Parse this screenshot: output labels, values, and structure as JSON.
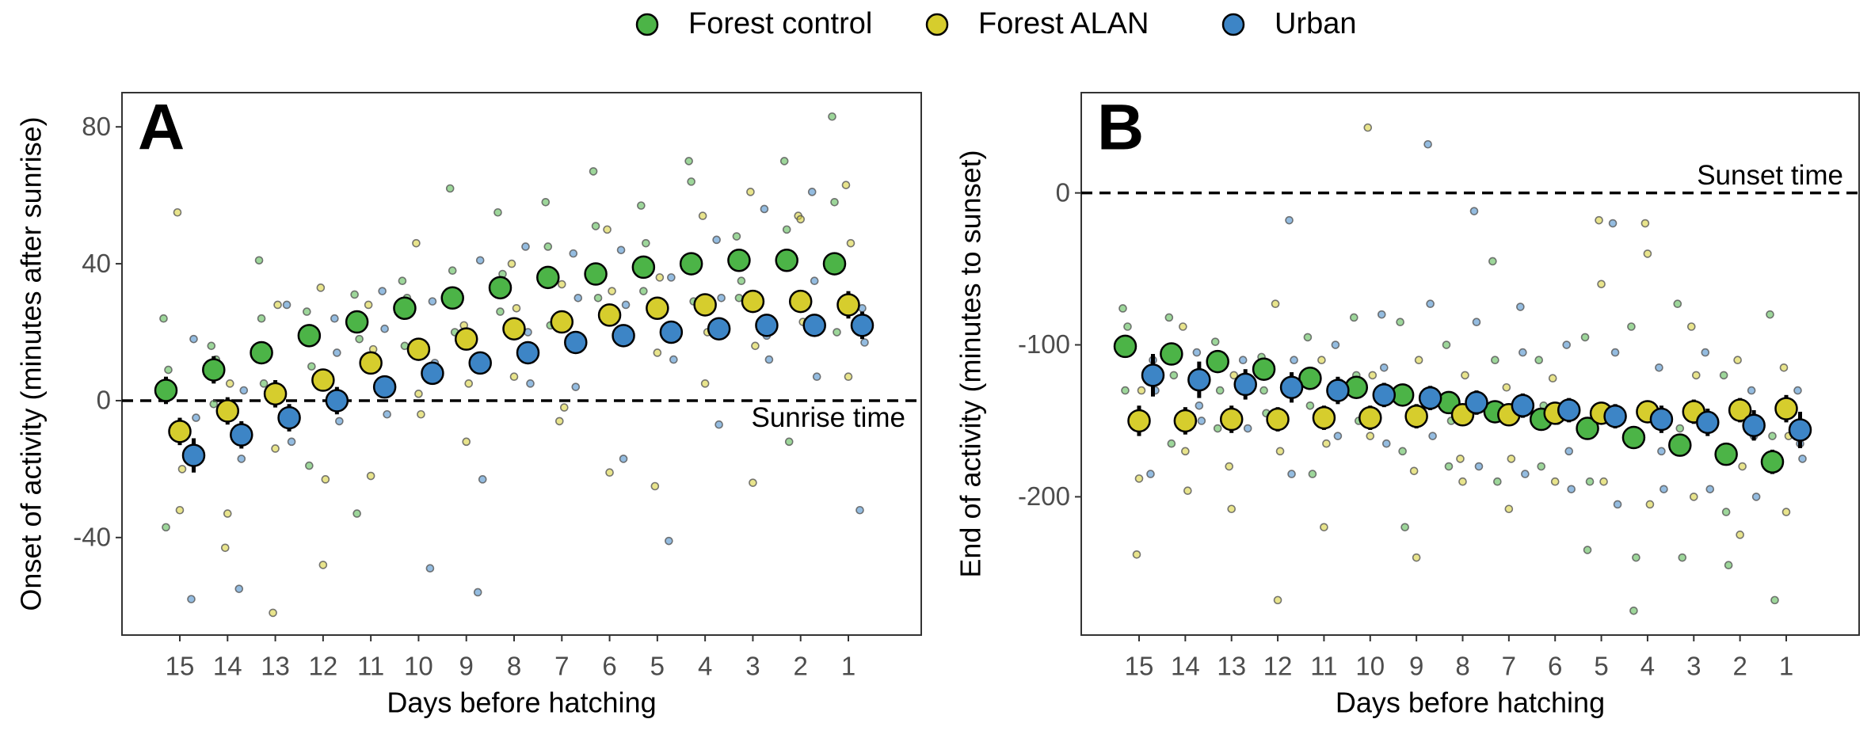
{
  "chart_data": [
    {
      "type": "dotplot",
      "panel_label": "A",
      "x_label": "Days before hatching",
      "y_label": "Onset of activity (minutes after sunrise)",
      "categories": [
        "15",
        "14",
        "13",
        "12",
        "11",
        "10",
        "9",
        "8",
        "7",
        "6",
        "5",
        "4",
        "3",
        "2",
        "1"
      ],
      "ylim": [
        -68.5,
        90
      ],
      "yticks": [
        -40,
        0,
        40,
        80
      ],
      "hline": 0,
      "hline_label": "Sunrise time",
      "series": [
        {
          "name": "Forest control",
          "color": "#4cb447",
          "values": [
            3,
            9,
            14,
            19,
            23,
            27,
            30,
            33,
            36,
            37,
            39,
            40,
            41,
            41,
            40
          ],
          "errors": [
            4,
            4,
            3,
            3,
            3,
            3,
            3,
            3,
            3,
            3,
            3,
            3,
            3,
            3,
            3
          ],
          "points": [
            [
              24,
              -37,
              9
            ],
            [
              16,
              -1,
              12
            ],
            [
              41,
              24,
              5
            ],
            [
              26,
              -19,
              10
            ],
            [
              31,
              -33,
              18
            ],
            [
              35,
              16,
              30
            ],
            [
              62,
              38,
              20
            ],
            [
              55,
              26,
              37
            ],
            [
              58,
              45,
              22
            ],
            [
              67,
              51,
              30
            ],
            [
              57,
              32,
              46
            ],
            [
              70,
              64,
              29
            ],
            [
              48,
              30,
              35
            ],
            [
              70,
              50,
              -12
            ],
            [
              83,
              58,
              20
            ]
          ]
        },
        {
          "name": "Forest ALAN",
          "color": "#d6cd2d",
          "values": [
            -9,
            -3,
            2,
            6,
            11,
            15,
            18,
            21,
            23,
            25,
            27,
            28,
            29,
            29,
            28
          ],
          "errors": [
            4,
            4,
            4,
            3,
            3,
            3,
            3,
            3,
            3,
            3,
            3,
            3,
            3,
            3,
            4
          ],
          "points": [
            [
              55,
              -32,
              -20
            ],
            [
              -43,
              -33,
              5
            ],
            [
              -62,
              -14,
              28
            ],
            [
              33,
              -48,
              -23
            ],
            [
              28,
              -22,
              15
            ],
            [
              46,
              2,
              -4
            ],
            [
              22,
              -12,
              5
            ],
            [
              40,
              7,
              27
            ],
            [
              -6,
              34,
              -2
            ],
            [
              50,
              -21,
              32
            ],
            [
              -25,
              14,
              36
            ],
            [
              54,
              5,
              20
            ],
            [
              61,
              -24,
              16
            ],
            [
              54,
              53,
              23
            ],
            [
              63,
              7,
              46
            ]
          ]
        },
        {
          "name": "Urban",
          "color": "#3d85c6",
          "values": [
            -16,
            -10,
            -5,
            0,
            4,
            8,
            11,
            14,
            17,
            19,
            20,
            21,
            22,
            22,
            22
          ],
          "errors": [
            5,
            4,
            4,
            4,
            3,
            3,
            3,
            3,
            3,
            3,
            3,
            3,
            3,
            3,
            4
          ],
          "points": [
            [
              -58,
              18,
              -5
            ],
            [
              -55,
              -17,
              3
            ],
            [
              28,
              -3,
              -12
            ],
            [
              24,
              14,
              -6
            ],
            [
              32,
              21,
              -4
            ],
            [
              -49,
              29,
              11
            ],
            [
              -56,
              41,
              -23
            ],
            [
              45,
              20,
              5
            ],
            [
              43,
              4,
              30
            ],
            [
              44,
              -17,
              28
            ],
            [
              -41,
              36,
              12
            ],
            [
              47,
              -7,
              30
            ],
            [
              56,
              19,
              12
            ],
            [
              61,
              35,
              7
            ],
            [
              -32,
              27,
              17
            ]
          ]
        }
      ]
    },
    {
      "type": "dotplot",
      "panel_label": "B",
      "x_label": "Days before hatching",
      "y_label": "End of activity (minutes to sunset)",
      "categories": [
        "15",
        "14",
        "13",
        "12",
        "11",
        "10",
        "9",
        "8",
        "7",
        "6",
        "5",
        "4",
        "3",
        "2",
        "1"
      ],
      "ylim": [
        -291,
        66
      ],
      "yticks": [
        -200,
        -100,
        0
      ],
      "hline": 0,
      "hline_label": "Sunset time",
      "series": [
        {
          "name": "Forest control",
          "color": "#4cb447",
          "values": [
            -101,
            -106,
            -111,
            -116,
            -122,
            -128,
            -133,
            -138,
            -144,
            -149,
            -155,
            -161,
            -166,
            -172,
            -177
          ],
          "errors": [
            7,
            7,
            6,
            6,
            6,
            6,
            6,
            6,
            6,
            6,
            6,
            6,
            6,
            7,
            8
          ],
          "points": [
            [
              -76,
              -130,
              -88
            ],
            [
              -82,
              -165,
              -120
            ],
            [
              -98,
              -155,
              -130
            ],
            [
              -108,
              -130,
              -145
            ],
            [
              -95,
              -140,
              -185
            ],
            [
              -82,
              -120,
              -150
            ],
            [
              -85,
              -170,
              -220
            ],
            [
              -100,
              -180,
              -150
            ],
            [
              -45,
              -110,
              -190
            ],
            [
              -110,
              -180,
              -140
            ],
            [
              -95,
              -235,
              -190
            ],
            [
              -88,
              -275,
              -240
            ],
            [
              -73,
              -155,
              -240
            ],
            [
              -120,
              -210,
              -245
            ],
            [
              -80,
              -160,
              -268
            ]
          ]
        },
        {
          "name": "Forest ALAN",
          "color": "#d6cd2d",
          "values": [
            -150,
            -150,
            -149,
            -149,
            -148,
            -148,
            -147,
            -146,
            -146,
            -145,
            -145,
            -144,
            -144,
            -143,
            -142
          ],
          "errors": [
            10,
            9,
            9,
            8,
            8,
            8,
            8,
            7,
            7,
            7,
            7,
            7,
            8,
            8,
            9
          ],
          "points": [
            [
              -238,
              -188,
              -130
            ],
            [
              -88,
              -170,
              -196
            ],
            [
              -180,
              -208,
              -120
            ],
            [
              -73,
              -268,
              -170
            ],
            [
              -110,
              -220,
              -165
            ],
            [
              43,
              -160,
              -120
            ],
            [
              -183,
              -240,
              -110
            ],
            [
              -175,
              -190,
              -120
            ],
            [
              -128,
              -208,
              -175
            ],
            [
              -122,
              -190,
              -150
            ],
            [
              -18,
              -60,
              -190
            ],
            [
              -20,
              -40,
              -205
            ],
            [
              -88,
              -200,
              -120
            ],
            [
              -110,
              -225,
              -180
            ],
            [
              -115,
              -210,
              -160
            ]
          ]
        },
        {
          "name": "Urban",
          "color": "#3d85c6",
          "values": [
            -120,
            -123,
            -126,
            -128,
            -130,
            -133,
            -135,
            -138,
            -140,
            -143,
            -147,
            -149,
            -151,
            -153,
            -156
          ],
          "errors": [
            14,
            12,
            10,
            10,
            9,
            8,
            8,
            8,
            8,
            8,
            8,
            9,
            9,
            10,
            12
          ],
          "points": [
            [
              -185,
              -110,
              -130
            ],
            [
              -105,
              -140,
              -150
            ],
            [
              -110,
              -130,
              -155
            ],
            [
              -18,
              -185,
              -110
            ],
            [
              -100,
              -160,
              -125
            ],
            [
              -80,
              -115,
              -165
            ],
            [
              32,
              -73,
              -160
            ],
            [
              -12,
              -85,
              -180
            ],
            [
              -75,
              -105,
              -185
            ],
            [
              -100,
              -170,
              -195
            ],
            [
              -20,
              -105,
              -205
            ],
            [
              -115,
              -170,
              -195
            ],
            [
              -105,
              -150,
              -195
            ],
            [
              -130,
              -160,
              -200
            ],
            [
              -130,
              -165,
              -175
            ]
          ]
        }
      ]
    }
  ]
}
